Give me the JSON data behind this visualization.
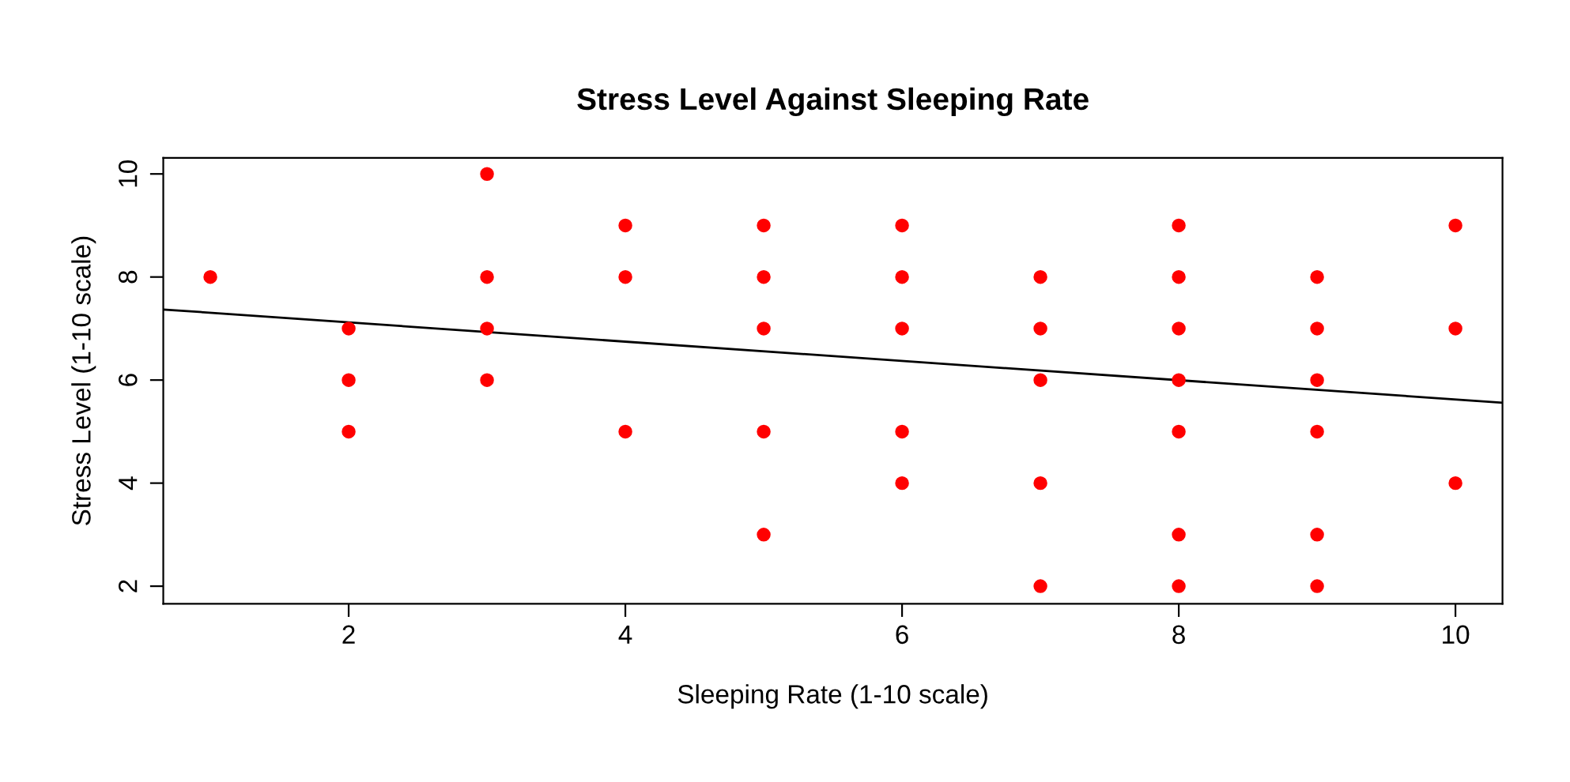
{
  "chart_data": {
    "type": "scatter",
    "title": "Stress Level Against Sleeping Rate",
    "xlabel": "Sleeping Rate (1-10 scale)",
    "ylabel": "Stress Level (1-10 scale)",
    "xlim": [
      0.66,
      10.34
    ],
    "ylim": [
      1.66,
      10.31
    ],
    "xticks": [
      2,
      4,
      6,
      8,
      10
    ],
    "yticks": [
      2,
      4,
      6,
      8,
      10
    ],
    "grid": false,
    "legend": false,
    "series": [
      {
        "marker": "circle",
        "color": "#ff0000",
        "x": [
          1,
          2,
          2,
          2,
          3,
          3,
          3,
          3,
          4,
          4,
          4,
          5,
          5,
          5,
          5,
          5,
          6,
          6,
          6,
          6,
          6,
          7,
          7,
          7,
          7,
          7,
          8,
          8,
          8,
          8,
          8,
          8,
          8,
          9,
          9,
          9,
          9,
          9,
          9,
          10,
          10,
          10
        ],
        "values": [
          8,
          7,
          6,
          5,
          10,
          8,
          7,
          6,
          9,
          8,
          5,
          9,
          8,
          7,
          5,
          3,
          9,
          8,
          7,
          5,
          4,
          8,
          7,
          6,
          4,
          2,
          9,
          8,
          7,
          6,
          5,
          3,
          2,
          8,
          7,
          6,
          5,
          3,
          2,
          9,
          7,
          4
        ]
      },
      {
        "type": "line",
        "color": "#000000",
        "x": [
          0.66,
          10.34
        ],
        "values": [
          7.37,
          5.56
        ]
      }
    ]
  }
}
